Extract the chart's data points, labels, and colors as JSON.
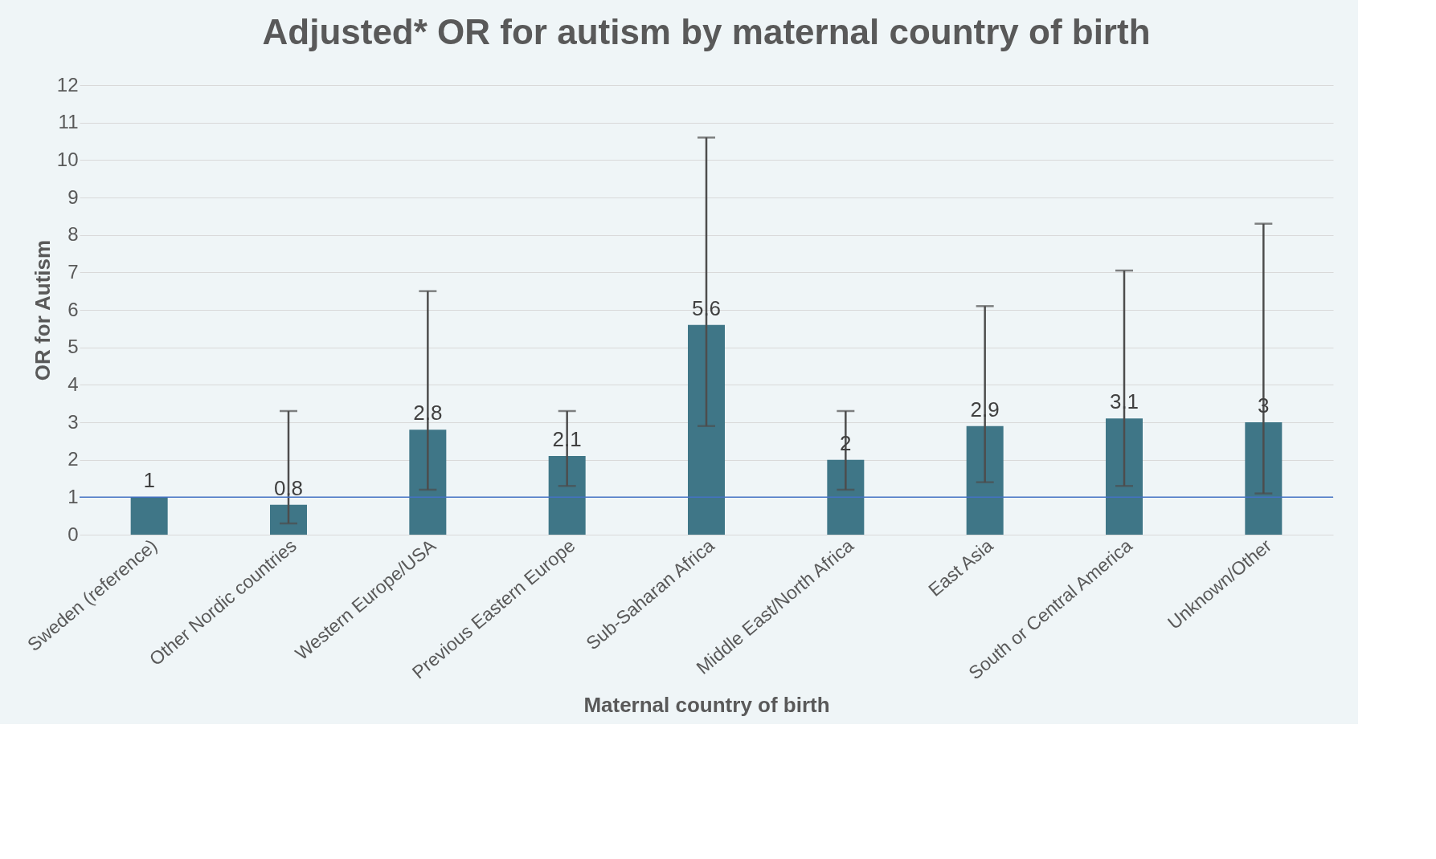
{
  "chart_data": {
    "type": "bar",
    "title": "Adjusted* OR for autism by maternal country of birth",
    "xlabel": "Maternal country of birth",
    "ylabel": "OR for Autism",
    "categories": [
      "Sweden (reference)",
      "Other Nordic countries",
      "Western Europe/USA",
      "Previous Eastern Europe",
      "Sub-Saharan Africa",
      "Middle East/North Africa",
      "East Asia",
      "South or Central America",
      "Unknown/Other"
    ],
    "values": [
      1,
      0.8,
      2.8,
      2.1,
      5.6,
      2,
      2.9,
      3.1,
      3
    ],
    "errors": [
      null,
      [
        0.3,
        3.3
      ],
      [
        1.2,
        6.5
      ],
      [
        1.3,
        3.3
      ],
      [
        2.9,
        10.6
      ],
      [
        1.2,
        3.3
      ],
      [
        1.4,
        6.1
      ],
      [
        1.3,
        7.05
      ],
      [
        1.1,
        8.3
      ]
    ],
    "color": "#3f7687",
    "data_labels": true,
    "ylim": [
      0,
      12
    ],
    "yticks": [
      0,
      1,
      2,
      3,
      4,
      5,
      6,
      7,
      8,
      9,
      10,
      11,
      12
    ],
    "grid": "y",
    "ref_lines": [
      {
        "axis": "y",
        "value": 1,
        "color": "#4472c4"
      }
    ]
  }
}
